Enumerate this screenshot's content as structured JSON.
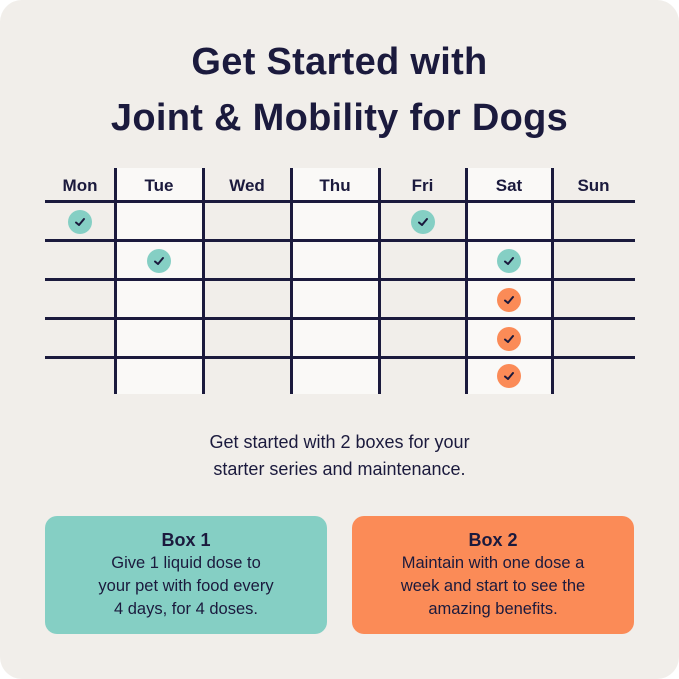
{
  "title": {
    "line1": "Get Started with",
    "line2": "Joint & Mobility for Dogs"
  },
  "calendar": {
    "days": [
      "Mon",
      "Tue",
      "Wed",
      "Thu",
      "Fri",
      "Sat",
      "Sun"
    ],
    "rows": [
      [
        "teal",
        "",
        "",
        "",
        "teal",
        "",
        ""
      ],
      [
        "",
        "teal",
        "",
        "",
        "",
        "teal",
        ""
      ],
      [
        "",
        "",
        "",
        "",
        "",
        "orange",
        ""
      ],
      [
        "",
        "",
        "",
        "",
        "",
        "orange",
        ""
      ],
      [
        "",
        "",
        "",
        "",
        "",
        "orange",
        ""
      ]
    ],
    "mark_icon": "checkmark-icon"
  },
  "colors": {
    "navy": "#1b1a3d",
    "teal": "#85cfc4",
    "orange": "#fb8b57",
    "background": "#f1eeea"
  },
  "subtitle": {
    "line1": "Get started with 2 boxes for your",
    "line2": "starter series and maintenance."
  },
  "boxes": [
    {
      "title": "Box 1",
      "lines": [
        "Give 1 liquid dose to",
        "your pet with food every",
        "4 days, for 4 doses."
      ]
    },
    {
      "title": "Box 2",
      "lines": [
        "Maintain with one dose a",
        "week and start to see the",
        "amazing benefits."
      ]
    }
  ]
}
